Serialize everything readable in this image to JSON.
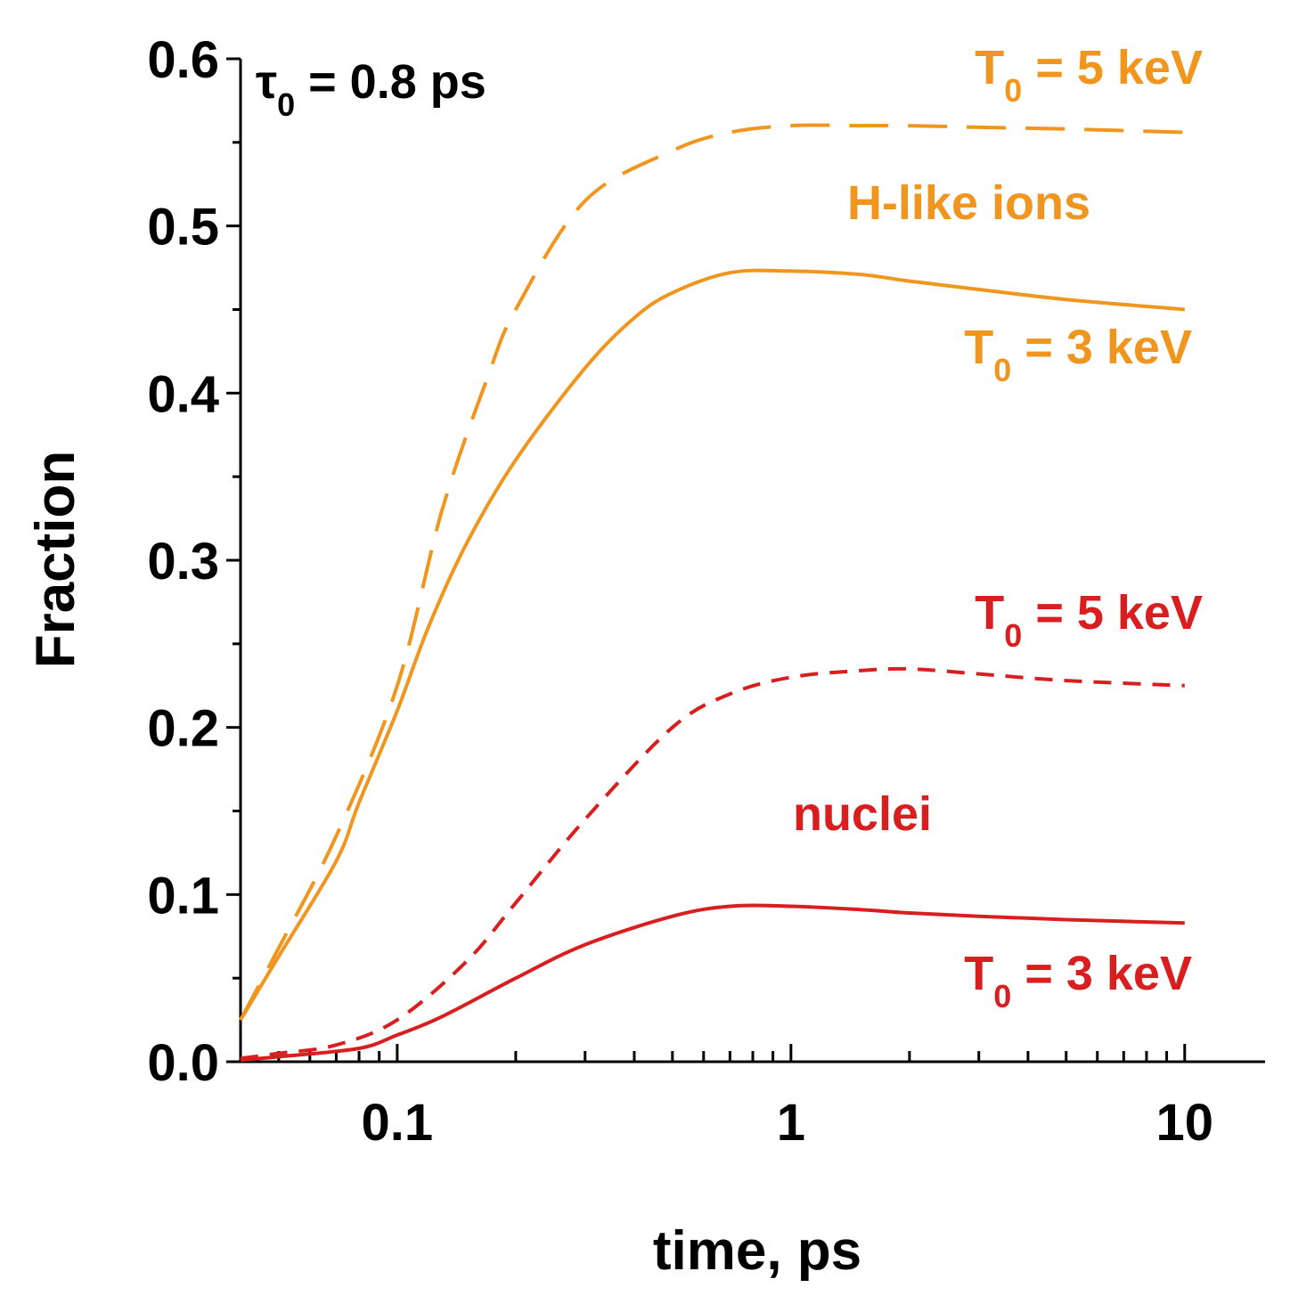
{
  "chart_data": {
    "type": "line",
    "title": "",
    "xlabel": "time, ps",
    "ylabel": "Fraction",
    "xscale": "log",
    "xlim": [
      0.04,
      16
    ],
    "ylim": [
      0,
      0.6
    ],
    "xticks": [
      {
        "value": 0.1,
        "label": "0.1"
      },
      {
        "value": 1,
        "label": "1"
      },
      {
        "value": 10,
        "label": "10"
      }
    ],
    "yticks": [
      {
        "value": 0.0,
        "label": "0.0"
      },
      {
        "value": 0.1,
        "label": "0.1"
      },
      {
        "value": 0.2,
        "label": "0.2"
      },
      {
        "value": 0.3,
        "label": "0.3"
      },
      {
        "value": 0.4,
        "label": "0.4"
      },
      {
        "value": 0.5,
        "label": "0.5"
      },
      {
        "value": 0.6,
        "label": "0.6"
      }
    ],
    "grid": false,
    "colors": {
      "h_like": "#F0961E",
      "nuclei": "#D81E1E",
      "axis": "#000000"
    },
    "series": [
      {
        "name": "H-like ions, T0 = 5 keV",
        "group": "h_like",
        "style": "long-dash",
        "x": [
          0.04,
          0.05,
          0.07,
          0.1,
          0.13,
          0.17,
          0.2,
          0.3,
          0.5,
          0.7,
          1.0,
          1.5,
          2,
          3,
          5,
          10
        ],
        "y": [
          0.025,
          0.068,
          0.135,
          0.225,
          0.33,
          0.41,
          0.45,
          0.515,
          0.545,
          0.556,
          0.56,
          0.56,
          0.56,
          0.559,
          0.558,
          0.556
        ]
      },
      {
        "name": "H-like ions, T0 = 3 keV",
        "group": "h_like",
        "style": "solid",
        "x": [
          0.04,
          0.05,
          0.07,
          0.08,
          0.1,
          0.12,
          0.15,
          0.2,
          0.3,
          0.4,
          0.5,
          0.7,
          1.0,
          1.5,
          2,
          3,
          5,
          10
        ],
        "y": [
          0.025,
          0.063,
          0.12,
          0.155,
          0.21,
          0.26,
          0.31,
          0.36,
          0.415,
          0.445,
          0.46,
          0.472,
          0.473,
          0.471,
          0.467,
          0.462,
          0.456,
          0.45
        ]
      },
      {
        "name": "nuclei, T0 = 5 keV",
        "group": "nuclei",
        "style": "short-dash",
        "x": [
          0.04,
          0.05,
          0.07,
          0.1,
          0.15,
          0.2,
          0.3,
          0.5,
          0.7,
          1.0,
          1.5,
          2,
          3,
          5,
          10
        ],
        "y": [
          0.002,
          0.005,
          0.01,
          0.025,
          0.06,
          0.095,
          0.145,
          0.2,
          0.22,
          0.23,
          0.234,
          0.235,
          0.232,
          0.228,
          0.225
        ]
      },
      {
        "name": "nuclei, T0 = 3 keV",
        "group": "nuclei",
        "style": "solid",
        "x": [
          0.04,
          0.05,
          0.08,
          0.1,
          0.13,
          0.2,
          0.3,
          0.5,
          0.7,
          1.0,
          1.5,
          2,
          3,
          5,
          10
        ],
        "y": [
          0.001,
          0.003,
          0.008,
          0.016,
          0.027,
          0.05,
          0.07,
          0.087,
          0.093,
          0.093,
          0.091,
          0.089,
          0.087,
          0.085,
          0.083
        ]
      }
    ],
    "annotations": [
      {
        "id": "tau",
        "parts": [
          "τ",
          "0",
          " = 0.8 ps"
        ],
        "color": "#000000"
      },
      {
        "id": "h5",
        "parts": [
          "T",
          "0",
          " = 5 keV"
        ],
        "color": "#F0961E"
      },
      {
        "id": "hions",
        "parts": [
          "H-like ions"
        ],
        "color": "#F0961E"
      },
      {
        "id": "h3",
        "parts": [
          "T",
          "0",
          " = 3 keV"
        ],
        "color": "#F0961E"
      },
      {
        "id": "n5",
        "parts": [
          "T",
          "0",
          " = 5 keV"
        ],
        "color": "#D81E1E"
      },
      {
        "id": "nuc",
        "parts": [
          "nuclei"
        ],
        "color": "#D81E1E"
      },
      {
        "id": "n3",
        "parts": [
          "T",
          "0",
          " = 3 keV"
        ],
        "color": "#D81E1E"
      }
    ]
  }
}
